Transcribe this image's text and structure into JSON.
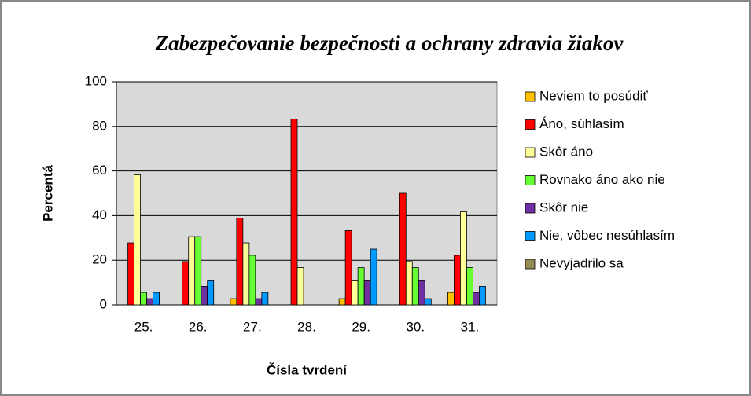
{
  "chart_data": {
    "type": "bar",
    "title": "Zabezpečovanie bezpečnosti a ochrany zdravia žiakov",
    "x_label": "Čísla tvrdení",
    "y_label": "Percentá",
    "categories": [
      "25.",
      "26.",
      "27.",
      "28.",
      "29.",
      "30.",
      "31."
    ],
    "series": [
      {
        "name": "Neviem to posúdiť",
        "color": "#FFC000",
        "values": [
          0,
          0,
          2.8,
          0,
          2.8,
          0,
          5.6
        ]
      },
      {
        "name": "Áno, súhlasím",
        "color": "#FF0000",
        "values": [
          27.8,
          19.4,
          38.9,
          83.3,
          33.3,
          50,
          22.2
        ]
      },
      {
        "name": "Skôr áno",
        "color": "#FFFF99",
        "values": [
          58.3,
          30.6,
          27.8,
          16.7,
          11.1,
          19.4,
          41.7
        ]
      },
      {
        "name": "Rovnako áno ako nie",
        "color": "#66FF33",
        "values": [
          5.6,
          30.6,
          22.2,
          0,
          16.7,
          16.7,
          16.7
        ]
      },
      {
        "name": "Skôr nie",
        "color": "#7030A0",
        "values": [
          2.8,
          8.3,
          2.8,
          0,
          11.1,
          11.1,
          5.6
        ]
      },
      {
        "name": "Nie, vôbec nesúhlasím",
        "color": "#0099FF",
        "values": [
          5.6,
          11.1,
          5.6,
          0,
          25,
          2.8,
          8.3
        ]
      },
      {
        "name": "Nevyjadrilo sa",
        "color": "#948A54",
        "values": [
          0,
          0,
          0,
          0,
          0,
          0,
          0
        ]
      }
    ],
    "ylim": [
      0,
      100
    ],
    "yticks": [
      0,
      20,
      40,
      60,
      80,
      100
    ],
    "grid": true,
    "legend": "right"
  }
}
